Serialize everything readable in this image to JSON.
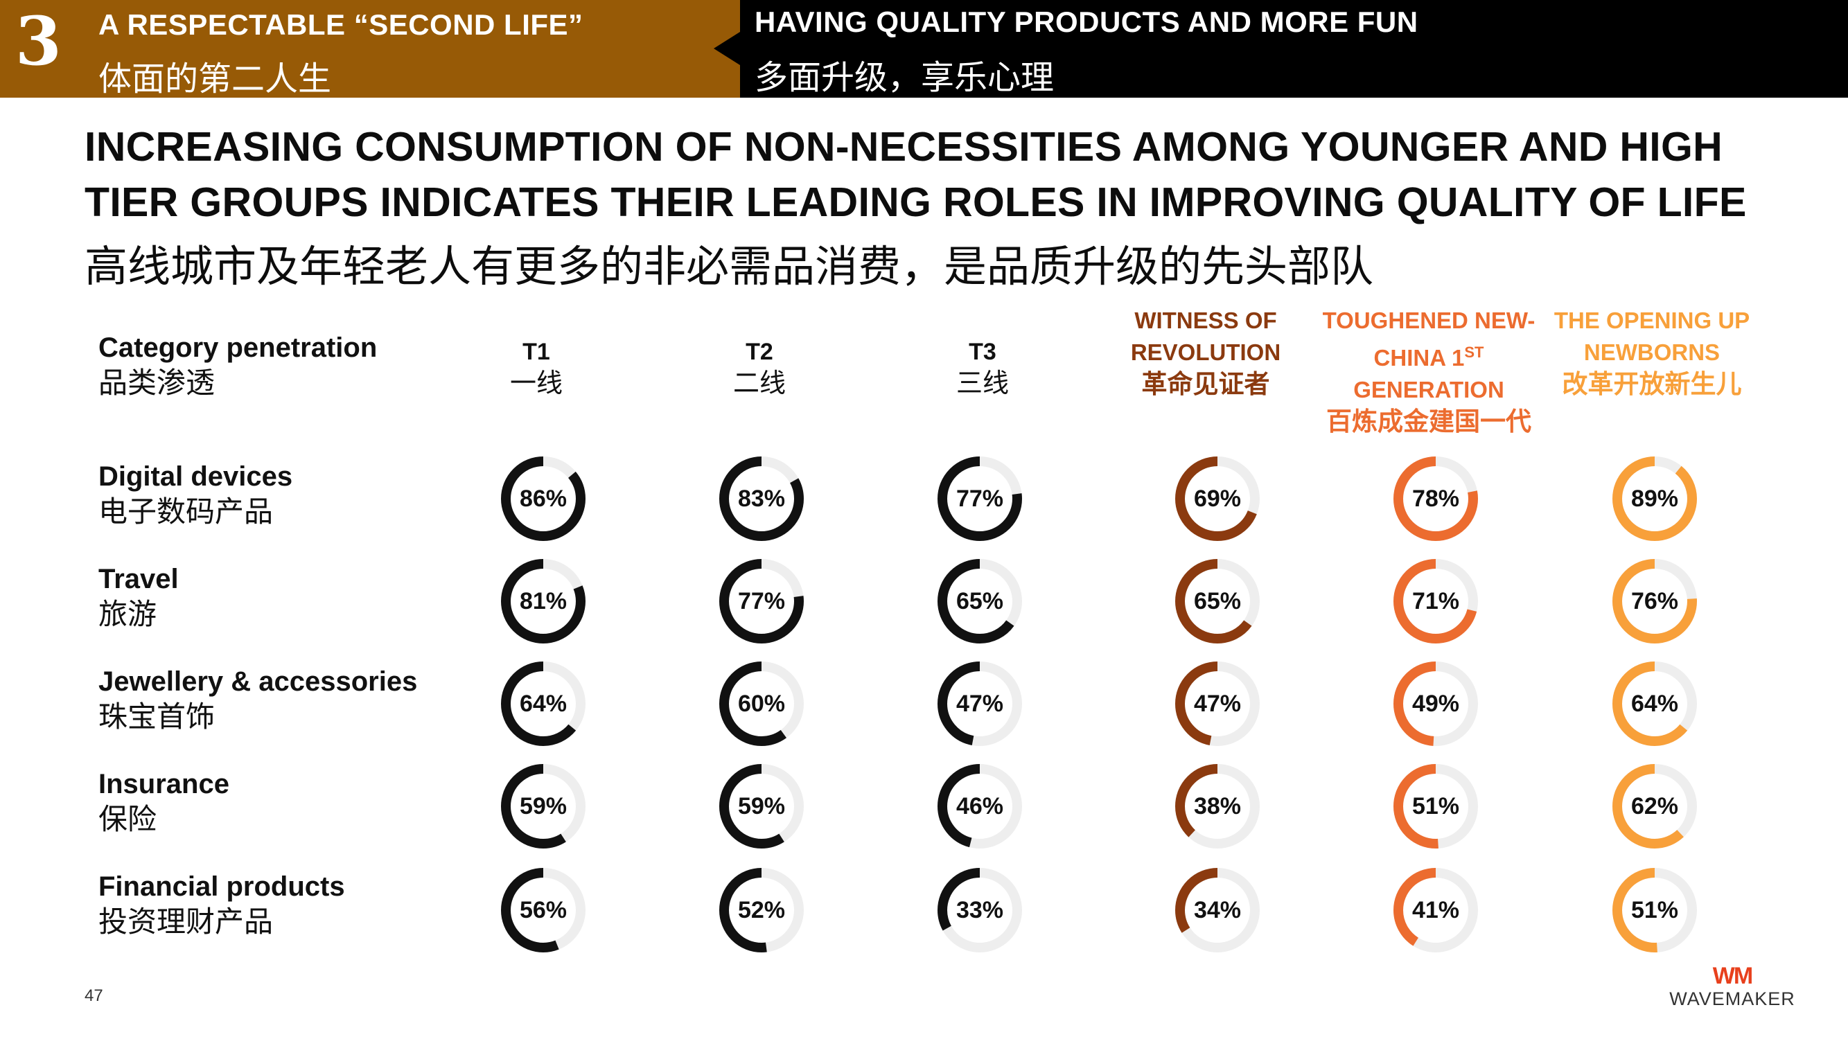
{
  "header": {
    "section_number": "3",
    "left_title_en": "A RESPECTABLE “SECOND LIFE”",
    "left_title_zh": "体面的第二人生",
    "right_title_en": "HAVING QUALITY PRODUCTS AND MORE FUN",
    "right_title_zh": "多面升级，享乐心理"
  },
  "headline": {
    "line1": "INCREASING CONSUMPTION OF NON-NECESSITIES AMONG YOUNGER AND HIGH",
    "line2": "TIER GROUPS INDICATES THEIR LEADING ROLES IN IMPROVING QUALITY OF LIFE",
    "zh": "高线城市及年轻老人有更多的非必需品消费，是品质升级的先头部队"
  },
  "colors": {
    "header_brown": "#975A06",
    "tier": "#111111",
    "witness": "#8B3A0F",
    "toughened": "#EC6C2F",
    "opening": "#F8A03A",
    "track": "#EEEEEE"
  },
  "chart_data": {
    "type": "donut-matrix",
    "title": "Category penetration",
    "title_zh": "品类渗透",
    "columns": [
      {
        "key": "t1",
        "label": "T1",
        "label_zh": "一线",
        "color": "#111111"
      },
      {
        "key": "t2",
        "label": "T2",
        "label_zh": "二线",
        "color": "#111111"
      },
      {
        "key": "t3",
        "label": "T3",
        "label_zh": "三线",
        "color": "#111111"
      },
      {
        "key": "witness",
        "label_line1": "WITNESS OF",
        "label_line2": "REVOLUTION",
        "label_zh": "革命见证者",
        "color": "#8B3A0F"
      },
      {
        "key": "toughened",
        "label_line1": "TOUGHENED NEW-",
        "label_line2_a": "CHINA 1",
        "label_line2_sup": "ST",
        "label_line3": "GENERATION",
        "label_zh": "百炼成金建国一代",
        "color": "#EC6C2F"
      },
      {
        "key": "opening",
        "label_line1": "THE OPENING UP",
        "label_line2": "NEWBORNS",
        "label_zh": "改革开放新生儿",
        "color": "#F8A03A"
      }
    ],
    "rows": [
      {
        "label": "Digital devices",
        "label_zh": "电子数码产品",
        "values": [
          86,
          83,
          77,
          69,
          78,
          89
        ],
        "labels": [
          "86%",
          "83%",
          "77%",
          "69%",
          "78%",
          "89%"
        ]
      },
      {
        "label": "Travel",
        "label_zh": "旅游",
        "values": [
          81,
          77,
          65,
          65,
          71,
          76
        ],
        "labels": [
          "81%",
          "77%",
          "65%",
          "65%",
          "71%",
          "76%"
        ]
      },
      {
        "label": "Jewellery & accessories",
        "label_zh": "珠宝首饰",
        "values": [
          64,
          60,
          47,
          47,
          49,
          64
        ],
        "labels": [
          "64%",
          "60%",
          "47%",
          "47%",
          "49%",
          "64%"
        ]
      },
      {
        "label": "Insurance",
        "label_zh": "保险",
        "values": [
          59,
          59,
          46,
          38,
          51,
          62
        ],
        "labels": [
          "59%",
          "59%",
          "46%",
          "38%",
          "51%",
          "62%"
        ]
      },
      {
        "label": "Financial products",
        "label_zh": "投资理财产品",
        "values": [
          56,
          52,
          33,
          34,
          41,
          51
        ],
        "labels": [
          "56%",
          "52%",
          "33%",
          "34%",
          "41%",
          "51%"
        ]
      }
    ]
  },
  "footer": {
    "page_number": "47",
    "logo_mark": "WM",
    "logo_text": "WAVEMAKER"
  }
}
